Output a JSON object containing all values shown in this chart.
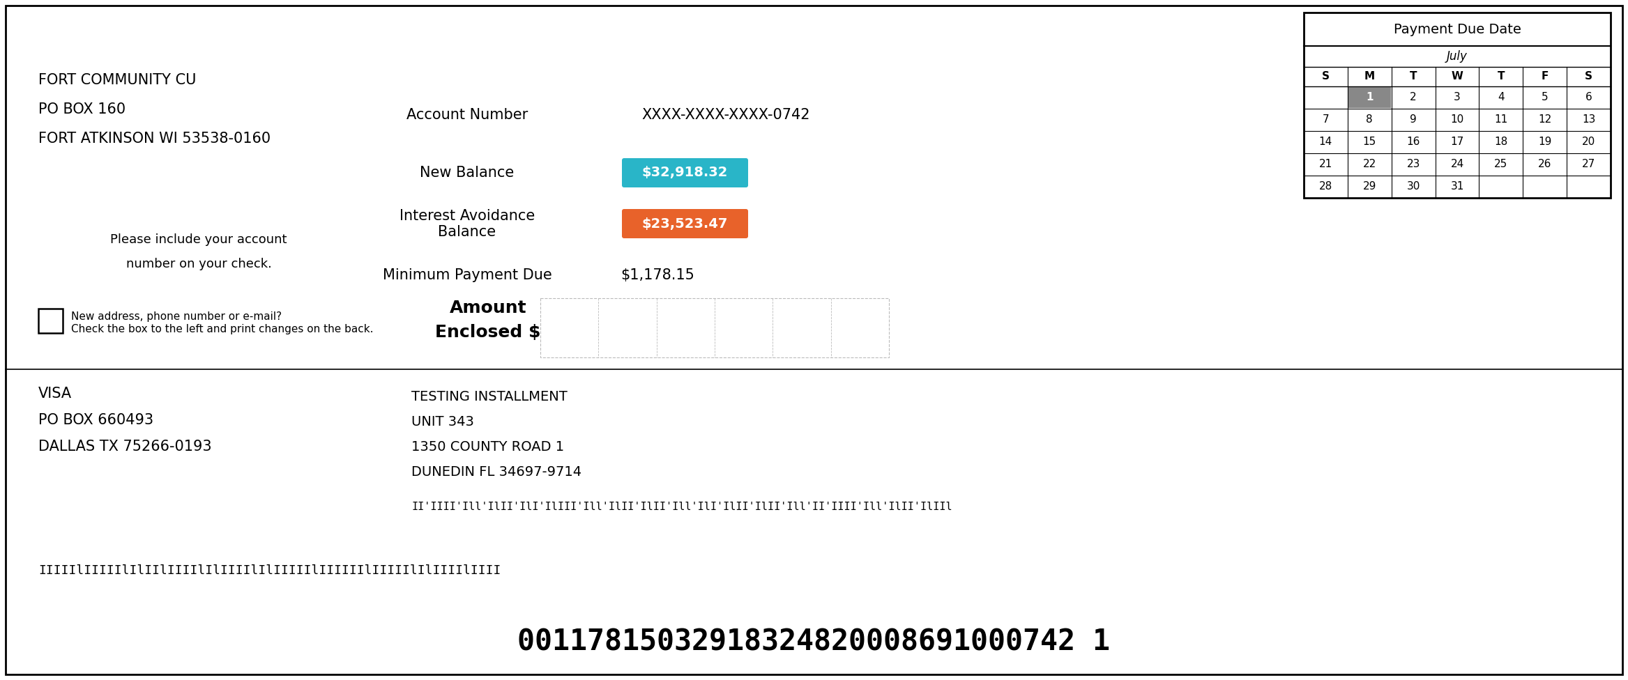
{
  "bg_color": "#ffffff",
  "border_color": "#000000",
  "left_address": [
    "FORT COMMUNITY CU",
    "PO BOX 160",
    "FORT ATKINSON WI 53538-0160"
  ],
  "center_note": [
    "Please include your account",
    "number on your check."
  ],
  "checkbox_text1": "New address, phone number or e-mail?",
  "checkbox_text2": "Check the box to the left and print changes on the back.",
  "bottom_left_address": [
    "VISA",
    "PO BOX 660493",
    "DALLAS TX 75266-0193"
  ],
  "account_label": "Account Number",
  "account_value": "XXXX-XXXX-XXXX-0742",
  "new_balance_label": "New Balance",
  "new_balance_value": "$32,918.32",
  "new_balance_color": "#29b5c8",
  "interest_label1": "Interest Avoidance",
  "interest_label2": "Balance",
  "interest_value": "$23,523.47",
  "interest_color": "#e8622a",
  "min_payment_label": "Minimum Payment Due",
  "min_payment_value": "$1,178.15",
  "amount_enclosed_label1": "Amount",
  "amount_enclosed_label2": "Enclosed $",
  "recipient_address": [
    "TESTING INSTALLMENT",
    "UNIT 343",
    "1350 COUNTY ROAD 1",
    "DUNEDIN FL 34697-9714"
  ],
  "calendar_title": "Payment Due Date",
  "calendar_month": "July",
  "calendar_headers": [
    "S",
    "M",
    "T",
    "W",
    "T",
    "F",
    "S"
  ],
  "calendar_rows": [
    [
      "",
      "1",
      "2",
      "3",
      "4",
      "5",
      "6"
    ],
    [
      "7",
      "8",
      "9",
      "10",
      "11",
      "12",
      "13"
    ],
    [
      "14",
      "15",
      "16",
      "17",
      "18",
      "19",
      "20"
    ],
    [
      "21",
      "22",
      "23",
      "24",
      "25",
      "26",
      "27"
    ],
    [
      "28",
      "29",
      "30",
      "31",
      "",
      "",
      ""
    ]
  ],
  "highlight_day": "1",
  "highlight_col": 1,
  "highlight_row": 0,
  "highlight_day_color": "#888888",
  "highlight_day_text_color": "#ffffff",
  "barcode_bottom_text": "00117815032918324820008691000742 1",
  "fig_width": 23.35,
  "fig_height": 9.76
}
